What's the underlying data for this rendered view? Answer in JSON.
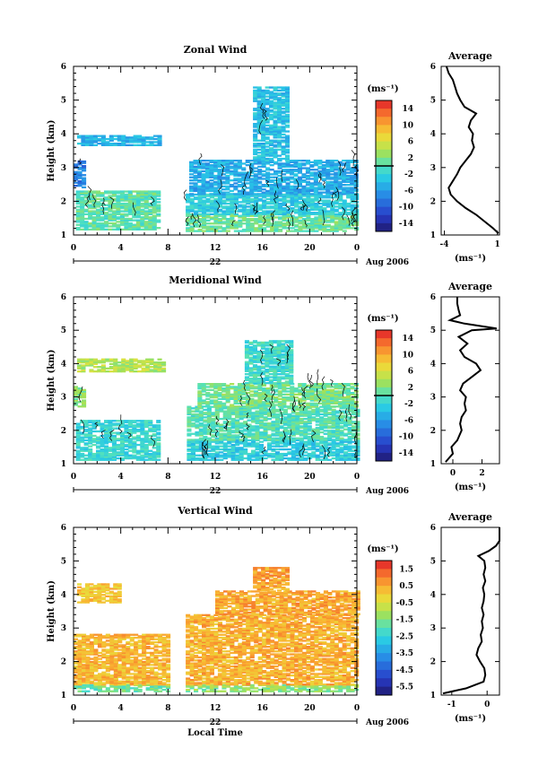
{
  "chart_data": [
    {
      "type": "heatmap",
      "title": "Zonal Wind",
      "ylabel": "Height (km)",
      "ylim": [
        1,
        6
      ],
      "yticks": [
        "1",
        "2",
        "3",
        "4",
        "5",
        "6"
      ],
      "xlim": [
        0,
        24
      ],
      "xticks": [
        "0",
        "4",
        "8",
        "12",
        "16",
        "20",
        "0"
      ],
      "date_day": "22",
      "date_month": "Aug 2006",
      "colorbar": {
        "unit_label": "(ms⁻¹)",
        "labels": [
          "14",
          "10",
          "6",
          "2",
          "-2",
          "-6",
          "-10",
          "-14"
        ],
        "range": [
          -16,
          16
        ],
        "zero_line": true
      },
      "echo_regions": [
        {
          "t0": 0.3,
          "t1": 7.3,
          "h0": 3.65,
          "h1": 3.95,
          "v": -4.5
        },
        {
          "t0": 0.0,
          "t1": 1.0,
          "h0": 2.4,
          "h1": 3.2,
          "v": -8
        },
        {
          "t0": 0.2,
          "t1": 7.0,
          "h0": 1.15,
          "h1": 2.3,
          "v": 0.5
        },
        {
          "t0": 9.5,
          "t1": 24.0,
          "h0": 1.1,
          "h1": 1.6,
          "v": 1.0
        },
        {
          "t0": 9.5,
          "t1": 24.0,
          "h0": 1.6,
          "h1": 2.2,
          "v": -2.5
        },
        {
          "t0": 9.8,
          "t1": 24.0,
          "h0": 2.2,
          "h1": 3.2,
          "v": -5.0
        },
        {
          "t0": 15.2,
          "t1": 18.2,
          "h0": 3.2,
          "h1": 5.4,
          "v": -3.5
        }
      ],
      "profile": {
        "title": "Average",
        "xlabel": "(ms⁻¹)",
        "xticks": [
          "-4",
          "1"
        ],
        "xlim": [
          -4.3,
          1.2
        ],
        "height": [
          1.05,
          1.2,
          1.4,
          1.6,
          1.8,
          2.0,
          2.2,
          2.4,
          2.6,
          2.8,
          3.0,
          3.2,
          3.4,
          3.6,
          3.8,
          4.0,
          4.2,
          4.4,
          4.6,
          4.8,
          5.0,
          5.2,
          5.4,
          5.6,
          5.8,
          6.0
        ],
        "values": [
          1.1,
          0.6,
          -0.2,
          -1.0,
          -2.0,
          -2.8,
          -3.4,
          -3.6,
          -3.2,
          -2.8,
          -2.5,
          -2.0,
          -1.5,
          -1.2,
          -1.4,
          -1.3,
          -1.7,
          -1.5,
          -1.0,
          -2.1,
          -2.5,
          -2.8,
          -3.0,
          -3.2,
          -3.6,
          -3.8
        ]
      }
    },
    {
      "type": "heatmap",
      "title": "Meridional Wind",
      "ylabel": "Height (km)",
      "ylim": [
        1,
        6
      ],
      "yticks": [
        "1",
        "2",
        "3",
        "4",
        "5",
        "6"
      ],
      "xlim": [
        0,
        24
      ],
      "xticks": [
        "0",
        "4",
        "8",
        "12",
        "16",
        "20",
        "0"
      ],
      "date_day": "22",
      "date_month": "Aug 2006",
      "colorbar": {
        "unit_label": "(ms⁻¹)",
        "labels": [
          "14",
          "10",
          "6",
          "2",
          "-2",
          "-6",
          "-10",
          "-14"
        ],
        "range": [
          -16,
          16
        ],
        "zero_line": true
      },
      "echo_regions": [
        {
          "t0": 0.3,
          "t1": 7.5,
          "h0": 3.75,
          "h1": 4.15,
          "v": 4.0
        },
        {
          "t0": 0.0,
          "t1": 0.7,
          "h0": 2.7,
          "h1": 3.3,
          "v": 2.0
        },
        {
          "t0": 0.2,
          "t1": 7.0,
          "h0": 1.1,
          "h1": 2.3,
          "v": -1.5
        },
        {
          "t0": 9.6,
          "t1": 24.0,
          "h0": 1.1,
          "h1": 1.7,
          "v": -2.5
        },
        {
          "t0": 9.6,
          "t1": 24.0,
          "h0": 1.7,
          "h1": 2.7,
          "v": 0.0
        },
        {
          "t0": 10.5,
          "t1": 24.0,
          "h0": 2.7,
          "h1": 3.4,
          "v": 1.5
        },
        {
          "t0": 14.5,
          "t1": 18.5,
          "h0": 3.4,
          "h1": 4.7,
          "v": -1.0
        }
      ],
      "profile": {
        "title": "Average",
        "xlabel": "(ms⁻¹)",
        "xticks": [
          "0",
          "2"
        ],
        "xlim": [
          -0.8,
          3.2
        ],
        "height": [
          1.05,
          1.3,
          1.5,
          1.7,
          2.0,
          2.2,
          2.4,
          2.6,
          2.8,
          3.0,
          3.2,
          3.4,
          3.6,
          3.8,
          4.0,
          4.2,
          4.4,
          4.6,
          4.8,
          5.0,
          5.05,
          5.2,
          5.3,
          5.45,
          5.6,
          5.8,
          6.0
        ],
        "values": [
          -0.5,
          0.0,
          -0.1,
          0.3,
          0.6,
          0.5,
          0.6,
          0.9,
          0.8,
          0.9,
          0.5,
          0.7,
          1.3,
          1.9,
          1.6,
          0.8,
          0.5,
          1.0,
          0.4,
          1.3,
          3.0,
          0.8,
          -0.2,
          0.5,
          0.4,
          0.3,
          0.3
        ]
      }
    },
    {
      "type": "heatmap",
      "title": "Vertical Wind",
      "ylabel": "Height (km)",
      "xlabel": "Local Time",
      "ylim": [
        1,
        6
      ],
      "yticks": [
        "1",
        "2",
        "3",
        "4",
        "5",
        "6"
      ],
      "xlim": [
        0,
        24
      ],
      "xticks": [
        "0",
        "4",
        "8",
        "12",
        "16",
        "20",
        "0"
      ],
      "date_day": "22",
      "date_month": "Aug 2006",
      "colorbar": {
        "unit_label": "(ms⁻¹)",
        "labels": [
          "1.5",
          "0.5",
          "-0.5",
          "-1.5",
          "-2.5",
          "-3.5",
          "-4.5",
          "-5.5"
        ],
        "range": [
          -6,
          2
        ],
        "zero_line": false
      },
      "echo_regions": [
        {
          "t0": 0.3,
          "t1": 4.0,
          "h0": 3.75,
          "h1": 4.3,
          "v": 0.1
        },
        {
          "t0": 0.0,
          "t1": 8.0,
          "h0": 1.1,
          "h1": 1.3,
          "v": -1.8
        },
        {
          "t0": 0.0,
          "t1": 8.0,
          "h0": 1.3,
          "h1": 2.8,
          "v": 0.3
        },
        {
          "t0": 9.5,
          "t1": 24.0,
          "h0": 1.1,
          "h1": 1.3,
          "v": -1.4
        },
        {
          "t0": 9.5,
          "t1": 24.0,
          "h0": 1.3,
          "h1": 3.4,
          "v": 0.4
        },
        {
          "t0": 12.0,
          "t1": 24.0,
          "h0": 3.4,
          "h1": 4.1,
          "v": 0.5
        },
        {
          "t0": 15.2,
          "t1": 18.2,
          "h0": 4.1,
          "h1": 4.8,
          "v": 0.6
        }
      ],
      "profile": {
        "title": "Average",
        "xlabel": "(ms⁻¹)",
        "xticks": [
          "-1",
          "0"
        ],
        "xlim": [
          -1.3,
          0.35
        ],
        "height": [
          1.05,
          1.2,
          1.4,
          1.6,
          1.8,
          2.0,
          2.2,
          2.4,
          2.6,
          2.8,
          3.0,
          3.2,
          3.4,
          3.6,
          3.8,
          4.0,
          4.2,
          4.4,
          4.6,
          4.8,
          5.0,
          5.15,
          5.3,
          5.45,
          5.6,
          6.0
        ],
        "values": [
          -1.25,
          -0.6,
          -0.1,
          -0.05,
          -0.08,
          -0.2,
          -0.3,
          -0.25,
          -0.15,
          -0.18,
          -0.12,
          -0.15,
          -0.1,
          -0.15,
          -0.1,
          -0.08,
          -0.12,
          -0.05,
          -0.1,
          -0.05,
          -0.08,
          -0.25,
          0.05,
          0.25,
          0.35,
          0.35
        ]
      }
    }
  ]
}
